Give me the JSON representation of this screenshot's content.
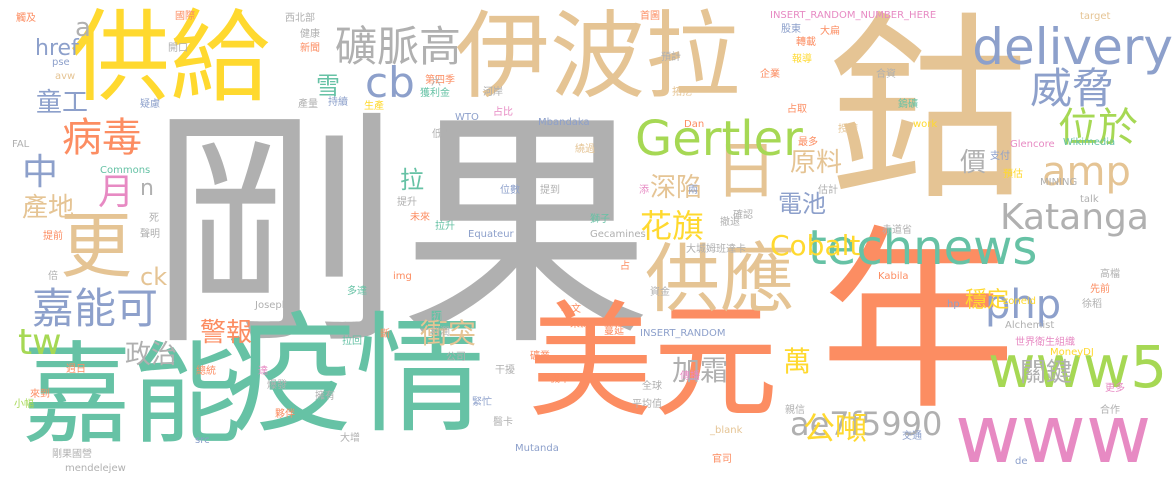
{
  "palette": {
    "gray": "#b0b0b0",
    "orange": "#fc8d62",
    "teal": "#66c2a5",
    "blue": "#8da0cb",
    "pink": "#e78ac3",
    "green": "#a6d854",
    "yellow": "#ffd92f",
    "tan": "#e5c494"
  },
  "words": [
    {
      "text": "剛果",
      "color": "gray"
    },
    {
      "text": "鈷",
      "color": "tan"
    },
    {
      "text": "年",
      "color": "orange"
    },
    {
      "text": "供給",
      "color": "yellow"
    },
    {
      "text": "伊波拉",
      "color": "tan"
    },
    {
      "text": "疫情",
      "color": "teal"
    },
    {
      "text": "美元",
      "color": "orange"
    },
    {
      "text": "嘉能",
      "color": "teal"
    },
    {
      "text": "www",
      "color": "pink"
    },
    {
      "text": "www5",
      "color": "green"
    },
    {
      "text": "technews",
      "color": "teal"
    },
    {
      "text": "delivery",
      "color": "blue"
    },
    {
      "text": "供應",
      "color": "tan"
    },
    {
      "text": "更",
      "color": "tan"
    },
    {
      "text": "日",
      "color": "tan"
    },
    {
      "text": "Gertler",
      "color": "green"
    },
    {
      "text": "嘉能可",
      "color": "blue"
    },
    {
      "text": "礦脈高",
      "color": "gray"
    },
    {
      "text": "威脅",
      "color": "blue"
    },
    {
      "text": "位於",
      "color": "green"
    },
    {
      "text": "amp",
      "color": "tan"
    },
    {
      "text": "php",
      "color": "blue"
    },
    {
      "text": "病毒",
      "color": "orange"
    },
    {
      "text": "cb",
      "color": "blue"
    },
    {
      "text": "Katanga",
      "color": "gray"
    },
    {
      "text": "ae7f5990",
      "color": "gray"
    },
    {
      "text": "tw",
      "color": "green"
    },
    {
      "text": "中",
      "color": "blue"
    },
    {
      "text": "月",
      "color": "pink"
    },
    {
      "text": "花旗",
      "color": "yellow"
    },
    {
      "text": "公噸",
      "color": "yellow"
    },
    {
      "text": "Cobalt",
      "color": "yellow"
    },
    {
      "text": "關鍵",
      "color": "gray"
    },
    {
      "text": "萬",
      "color": "yellow"
    },
    {
      "text": "衝突",
      "color": "tan"
    },
    {
      "text": "加霜",
      "color": "gray"
    },
    {
      "text": "產地",
      "color": "tan"
    },
    {
      "text": "童工",
      "color": "blue"
    },
    {
      "text": "警報",
      "color": "orange"
    },
    {
      "text": "政治",
      "color": "gray"
    },
    {
      "text": "深陷",
      "color": "tan"
    },
    {
      "text": "原料",
      "color": "tan"
    },
    {
      "text": "電池",
      "color": "blue"
    },
    {
      "text": "價",
      "color": "gray"
    },
    {
      "text": "穩定",
      "color": "yellow"
    },
    {
      "text": "href",
      "color": "blue"
    },
    {
      "text": "雪",
      "color": "teal"
    },
    {
      "text": "拉",
      "color": "teal"
    },
    {
      "text": "ck",
      "color": "tan"
    },
    {
      "text": "n",
      "color": "gray"
    },
    {
      "text": "a",
      "color": "gray"
    },
    {
      "text": "INSERT_RANDOM_NUMBER_HERE",
      "color": "pink"
    },
    {
      "text": "target",
      "color": "tan"
    },
    {
      "text": "Wikimedia",
      "color": "teal"
    },
    {
      "text": "Glencore",
      "color": "pink"
    },
    {
      "text": "MINING",
      "color": "gray"
    },
    {
      "text": "talk",
      "color": "gray"
    },
    {
      "text": "work",
      "color": "yellow"
    },
    {
      "text": "世界衛生組織",
      "color": "pink"
    },
    {
      "text": "MoneyDJ",
      "color": "yellow"
    },
    {
      "text": "Alchemist",
      "color": "gray"
    },
    {
      "text": "zoneid",
      "color": "yellow"
    },
    {
      "text": "Kabila",
      "color": "orange"
    },
    {
      "text": "INSERT_RANDOM",
      "color": "blue"
    },
    {
      "text": "Equateur",
      "color": "blue"
    },
    {
      "text": "Gecamines",
      "color": "gray"
    },
    {
      "text": "Mbandaka",
      "color": "blue"
    },
    {
      "text": "WTO",
      "color": "blue"
    },
    {
      "text": "Joseph",
      "color": "gray"
    },
    {
      "text": "Commons",
      "color": "teal"
    },
    {
      "text": "Mutanda",
      "color": "blue"
    },
    {
      "text": "mendelejew",
      "color": "gray"
    },
    {
      "text": "_blank",
      "color": "tan"
    },
    {
      "text": "Dan",
      "color": "orange"
    },
    {
      "text": "hp",
      "color": "blue"
    },
    {
      "text": "de",
      "color": "blue"
    },
    {
      "text": "src",
      "color": "blue"
    },
    {
      "text": "pse",
      "color": "blue"
    },
    {
      "text": "FAL",
      "color": "gray"
    },
    {
      "text": "avw",
      "color": "tan"
    },
    {
      "text": "img",
      "color": "orange"
    },
    {
      "text": "國際",
      "color": "orange"
    },
    {
      "text": "首圖",
      "color": "orange"
    },
    {
      "text": "觸及",
      "color": "orange"
    },
    {
      "text": "西北部",
      "color": "gray"
    },
    {
      "text": "健康",
      "color": "gray"
    },
    {
      "text": "新聞",
      "color": "orange"
    },
    {
      "text": "開口",
      "color": "gray"
    },
    {
      "text": "第四季",
      "color": "orange"
    },
    {
      "text": "獲利金",
      "color": "teal"
    },
    {
      "text": "河岸",
      "color": "gray"
    },
    {
      "text": "預計",
      "color": "gray"
    },
    {
      "text": "股東",
      "color": "blue"
    },
    {
      "text": "大扁",
      "color": "orange"
    },
    {
      "text": "轉載",
      "color": "orange"
    },
    {
      "text": "報導",
      "color": "yellow"
    },
    {
      "text": "企業",
      "color": "orange"
    },
    {
      "text": "合資",
      "color": "gray"
    },
    {
      "text": "拓挖",
      "color": "tan"
    },
    {
      "text": "持續",
      "color": "blue"
    },
    {
      "text": "生產",
      "color": "yellow"
    },
    {
      "text": "占比",
      "color": "pink"
    },
    {
      "text": "疑慮",
      "color": "blue"
    },
    {
      "text": "產量",
      "color": "gray"
    },
    {
      "text": "低點",
      "color": "gray"
    },
    {
      "text": "位數",
      "color": "blue"
    },
    {
      "text": "提到",
      "color": "gray"
    },
    {
      "text": "添",
      "color": "pink"
    },
    {
      "text": "兩",
      "color": "blue"
    },
    {
      "text": "支付",
      "color": "blue"
    },
    {
      "text": "預估",
      "color": "yellow"
    },
    {
      "text": "估計",
      "color": "gray"
    },
    {
      "text": "赤道省",
      "color": "gray"
    },
    {
      "text": "鎢礦",
      "color": "teal"
    },
    {
      "text": "繞過",
      "color": "tan"
    },
    {
      "text": "確認",
      "color": "gray"
    },
    {
      "text": "撤退",
      "color": "gray"
    },
    {
      "text": "授權",
      "color": "tan"
    },
    {
      "text": "最多",
      "color": "orange"
    },
    {
      "text": "占取",
      "color": "orange"
    },
    {
      "text": "高檔",
      "color": "gray"
    },
    {
      "text": "先前",
      "color": "orange"
    },
    {
      "text": "徐稻",
      "color": "gray"
    },
    {
      "text": "更多",
      "color": "pink"
    },
    {
      "text": "合作",
      "color": "gray"
    },
    {
      "text": "交通",
      "color": "blue"
    },
    {
      "text": "官司",
      "color": "orange"
    },
    {
      "text": "親信",
      "color": "gray"
    },
    {
      "text": "傳播",
      "color": "pink"
    },
    {
      "text": "平均值",
      "color": "gray"
    },
    {
      "text": "全球",
      "color": "gray"
    },
    {
      "text": "緊忙",
      "color": "blue"
    },
    {
      "text": "醫卡",
      "color": "gray"
    },
    {
      "text": "夥伴",
      "color": "orange"
    },
    {
      "text": "大增",
      "color": "gray"
    },
    {
      "text": "剛果國營",
      "color": "gray"
    },
    {
      "text": "總統",
      "color": "orange"
    },
    {
      "text": "達",
      "color": "pink"
    },
    {
      "text": "多達",
      "color": "teal"
    },
    {
      "text": "拉回",
      "color": "teal"
    },
    {
      "text": "初",
      "color": "gray"
    },
    {
      "text": "利潤",
      "color": "gray"
    },
    {
      "text": "本文",
      "color": "orange"
    },
    {
      "text": "來源",
      "color": "orange"
    },
    {
      "text": "蔓延",
      "color": "orange"
    },
    {
      "text": "資金",
      "color": "gray"
    },
    {
      "text": "礦業",
      "color": "orange"
    },
    {
      "text": "干擾",
      "color": "gray"
    },
    {
      "text": "公司",
      "color": "gray"
    },
    {
      "text": "斷",
      "color": "orange"
    },
    {
      "text": "提升",
      "color": "gray"
    },
    {
      "text": "未來",
      "color": "orange"
    },
    {
      "text": "拉升",
      "color": "teal"
    },
    {
      "text": "提前",
      "color": "orange"
    },
    {
      "text": "死",
      "color": "gray"
    },
    {
      "text": "聲明",
      "color": "gray"
    },
    {
      "text": "倍",
      "color": "gray"
    },
    {
      "text": "獅子",
      "color": "teal"
    },
    {
      "text": "大城姆班達卡",
      "color": "gray"
    },
    {
      "text": "占",
      "color": "orange"
    },
    {
      "text": "六",
      "color": "gray"
    },
    {
      "text": "週日",
      "color": "orange"
    },
    {
      "text": "小幅",
      "color": "green"
    },
    {
      "text": "來到",
      "color": "orange"
    },
    {
      "text": "爆發",
      "color": "gray"
    },
    {
      "text": "擁有",
      "color": "gray"
    },
    {
      "text": "機率",
      "color": "orange"
    }
  ]
}
